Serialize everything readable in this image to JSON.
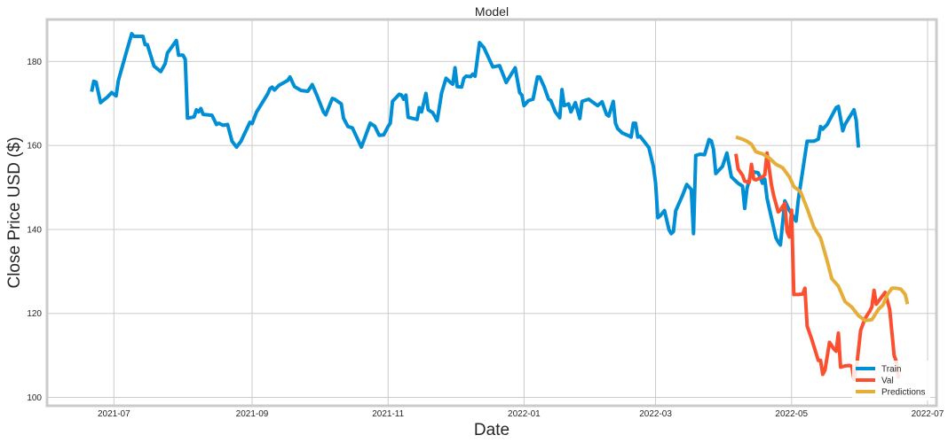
{
  "chart_data": {
    "type": "line",
    "title": "Model",
    "xlabel": "Date",
    "ylabel": "Close Price USD ($)",
    "xlim": [
      "2021-06-01",
      "2022-07-05"
    ],
    "ylim": [
      98,
      190
    ],
    "x_ticks": [
      "2021-07",
      "2021-09",
      "2021-11",
      "2022-01",
      "2022-03",
      "2022-05",
      "2022-07"
    ],
    "y_ticks": [
      100,
      120,
      140,
      160,
      180
    ],
    "grid": true,
    "legend_position": "lower right",
    "series": [
      {
        "name": "Train",
        "color": "#008fd5",
        "points": [
          [
            "2021-06-21",
            172.8
          ],
          [
            "2021-06-22",
            175.3
          ],
          [
            "2021-06-23",
            175.1
          ],
          [
            "2021-06-25",
            170.2
          ],
          [
            "2021-06-28",
            171.5
          ],
          [
            "2021-06-30",
            172.6
          ],
          [
            "2021-07-02",
            171.8
          ],
          [
            "2021-07-03",
            175.5
          ],
          [
            "2021-07-07",
            183.0
          ],
          [
            "2021-07-09",
            186.6
          ],
          [
            "2021-07-10",
            186.0
          ],
          [
            "2021-07-14",
            186.0
          ],
          [
            "2021-07-15",
            184.0
          ],
          [
            "2021-07-16",
            184.0
          ],
          [
            "2021-07-19",
            178.9
          ],
          [
            "2021-07-22",
            177.6
          ],
          [
            "2021-07-24",
            179.5
          ],
          [
            "2021-07-25",
            182.0
          ],
          [
            "2021-07-29",
            185.0
          ],
          [
            "2021-07-30",
            181.5
          ],
          [
            "2021-08-01",
            181.5
          ],
          [
            "2021-08-02",
            180.5
          ],
          [
            "2021-08-03",
            166.5
          ],
          [
            "2021-08-06",
            166.8
          ],
          [
            "2021-08-07",
            168.5
          ],
          [
            "2021-08-08",
            168.0
          ],
          [
            "2021-08-09",
            168.8
          ],
          [
            "2021-08-10",
            167.4
          ],
          [
            "2021-08-14",
            167.2
          ],
          [
            "2021-08-16",
            165.0
          ],
          [
            "2021-08-17",
            165.3
          ],
          [
            "2021-08-19",
            164.8
          ],
          [
            "2021-08-21",
            165.0
          ],
          [
            "2021-08-23",
            161.0
          ],
          [
            "2021-08-25",
            159.6
          ],
          [
            "2021-08-27",
            161.0
          ],
          [
            "2021-08-31",
            165.5
          ],
          [
            "2021-09-01",
            165.2
          ],
          [
            "2021-09-03",
            168.0
          ],
          [
            "2021-09-08",
            172.3
          ],
          [
            "2021-09-09",
            173.5
          ],
          [
            "2021-09-10",
            173.9
          ],
          [
            "2021-09-11",
            173.2
          ],
          [
            "2021-09-13",
            174.3
          ],
          [
            "2021-09-17",
            175.5
          ],
          [
            "2021-09-18",
            176.3
          ],
          [
            "2021-09-20",
            174.0
          ],
          [
            "2021-09-23",
            173.1
          ],
          [
            "2021-09-26",
            172.9
          ],
          [
            "2021-09-28",
            174.5
          ],
          [
            "2021-09-30",
            172.0
          ],
          [
            "2021-10-03",
            168.0
          ],
          [
            "2021-10-04",
            167.3
          ],
          [
            "2021-10-07",
            171.2
          ],
          [
            "2021-10-08",
            171.0
          ],
          [
            "2021-10-11",
            169.9
          ],
          [
            "2021-10-12",
            166.5
          ],
          [
            "2021-10-14",
            164.5
          ],
          [
            "2021-10-16",
            164.2
          ],
          [
            "2021-10-20",
            159.6
          ],
          [
            "2021-10-24",
            165.3
          ],
          [
            "2021-10-26",
            164.6
          ],
          [
            "2021-10-28",
            162.4
          ],
          [
            "2021-10-30",
            162.5
          ],
          [
            "2021-11-01",
            164.5
          ],
          [
            "2021-11-02",
            165.3
          ],
          [
            "2021-11-03",
            170.5
          ],
          [
            "2021-11-06",
            172.2
          ],
          [
            "2021-11-07",
            172.0
          ],
          [
            "2021-11-08",
            171.0
          ],
          [
            "2021-11-09",
            172.0
          ],
          [
            "2021-11-10",
            166.7
          ],
          [
            "2021-11-14",
            166.2
          ],
          [
            "2021-11-15",
            169.0
          ],
          [
            "2021-11-16",
            168.0
          ],
          [
            "2021-11-18",
            172.4
          ],
          [
            "2021-11-19",
            168.5
          ],
          [
            "2021-11-21",
            167.8
          ],
          [
            "2021-11-23",
            165.9
          ],
          [
            "2021-11-25",
            172.5
          ],
          [
            "2021-11-27",
            176.0
          ],
          [
            "2021-11-29",
            175.0
          ],
          [
            "2021-11-30",
            174.6
          ],
          [
            "2021-12-01",
            178.5
          ],
          [
            "2021-12-02",
            174.0
          ],
          [
            "2021-12-04",
            173.9
          ],
          [
            "2021-12-05",
            176.0
          ],
          [
            "2021-12-06",
            176.5
          ],
          [
            "2021-12-08",
            176.4
          ],
          [
            "2021-12-09",
            177.0
          ],
          [
            "2021-12-10",
            176.5
          ],
          [
            "2021-12-12",
            184.5
          ],
          [
            "2021-12-14",
            183.3
          ],
          [
            "2021-12-16",
            181.0
          ],
          [
            "2021-12-18",
            178.7
          ],
          [
            "2021-12-21",
            179.0
          ],
          [
            "2021-12-24",
            175.0
          ],
          [
            "2021-12-28",
            178.5
          ],
          [
            "2021-12-30",
            172.6
          ],
          [
            "2021-12-31",
            172.0
          ],
          [
            "2022-01-01",
            169.5
          ],
          [
            "2022-01-03",
            170.7
          ],
          [
            "2022-01-05",
            171.0
          ],
          [
            "2022-01-07",
            176.3
          ],
          [
            "2022-01-08",
            176.3
          ],
          [
            "2022-01-10",
            174.0
          ],
          [
            "2022-01-12",
            171.0
          ],
          [
            "2022-01-13",
            170.7
          ],
          [
            "2022-01-15",
            168.0
          ],
          [
            "2022-01-17",
            166.6
          ],
          [
            "2022-01-18",
            173.3
          ],
          [
            "2022-01-19",
            169.5
          ],
          [
            "2022-01-21",
            169.9
          ],
          [
            "2022-01-22",
            168.0
          ],
          [
            "2022-01-24",
            170.2
          ],
          [
            "2022-01-26",
            166.4
          ],
          [
            "2022-01-27",
            170.5
          ],
          [
            "2022-01-30",
            171.0
          ],
          [
            "2022-02-03",
            169.5
          ],
          [
            "2022-02-05",
            170.4
          ],
          [
            "2022-02-07",
            167.4
          ],
          [
            "2022-02-08",
            167.0
          ],
          [
            "2022-02-10",
            170.5
          ],
          [
            "2022-02-11",
            165.3
          ],
          [
            "2022-02-12",
            164.0
          ],
          [
            "2022-02-14",
            163.0
          ],
          [
            "2022-02-17",
            162.3
          ],
          [
            "2022-02-18",
            162.0
          ],
          [
            "2022-02-19",
            165.3
          ],
          [
            "2022-02-20",
            165.3
          ],
          [
            "2022-02-21",
            162.0
          ],
          [
            "2022-02-22",
            162.2
          ],
          [
            "2022-02-26",
            159.5
          ],
          [
            "2022-02-28",
            155.0
          ],
          [
            "2022-03-01",
            151.0
          ],
          [
            "2022-03-02",
            142.8
          ],
          [
            "2022-03-03",
            143.2
          ],
          [
            "2022-03-05",
            144.5
          ],
          [
            "2022-03-07",
            140.0
          ],
          [
            "2022-03-08",
            139.0
          ],
          [
            "2022-03-09",
            139.5
          ],
          [
            "2022-03-10",
            144.4
          ],
          [
            "2022-03-13",
            148.0
          ],
          [
            "2022-03-15",
            150.7
          ],
          [
            "2022-03-17",
            149.5
          ],
          [
            "2022-03-18",
            139.0
          ],
          [
            "2022-03-19",
            157.6
          ],
          [
            "2022-03-21",
            157.9
          ],
          [
            "2022-03-23",
            157.8
          ],
          [
            "2022-03-25",
            161.4
          ],
          [
            "2022-03-26",
            161.1
          ],
          [
            "2022-03-27",
            159.0
          ],
          [
            "2022-03-28",
            153.3
          ],
          [
            "2022-03-31",
            155.0
          ],
          [
            "2022-04-02",
            158.2
          ],
          [
            "2022-04-04",
            152.5
          ],
          [
            "2022-04-07",
            151.0
          ],
          [
            "2022-04-09",
            150.3
          ],
          [
            "2022-04-10",
            145.0
          ],
          [
            "2022-04-11",
            149.7
          ],
          [
            "2022-04-13",
            153.8
          ],
          [
            "2022-04-16",
            153.5
          ],
          [
            "2022-04-18",
            151.0
          ],
          [
            "2022-04-19",
            152.0
          ],
          [
            "2022-04-20",
            147.5
          ],
          [
            "2022-04-21",
            145.0
          ],
          [
            "2022-04-24",
            138.0
          ],
          [
            "2022-04-25",
            137.0
          ],
          [
            "2022-04-26",
            136.3
          ],
          [
            "2022-04-28",
            146.8
          ],
          [
            "2022-04-30",
            144.5
          ],
          [
            "2022-05-03",
            142.0
          ],
          [
            "2022-05-04",
            147.0
          ],
          [
            "2022-05-06",
            154.0
          ],
          [
            "2022-05-08",
            161.0
          ],
          [
            "2022-05-11",
            161.0
          ],
          [
            "2022-05-13",
            161.5
          ],
          [
            "2022-05-14",
            164.5
          ],
          [
            "2022-05-15",
            163.9
          ],
          [
            "2022-05-17",
            165.0
          ],
          [
            "2022-05-21",
            169.0
          ],
          [
            "2022-05-22",
            169.3
          ],
          [
            "2022-05-24",
            163.5
          ],
          [
            "2022-05-25",
            165.0
          ],
          [
            "2022-05-29",
            168.5
          ],
          [
            "2022-05-30",
            166.0
          ],
          [
            "2022-05-31",
            159.5
          ]
        ]
      },
      {
        "name": "Val",
        "color": "#fc4f30",
        "points": [
          [
            "2022-04-06",
            158.0
          ],
          [
            "2022-04-07",
            154.4
          ],
          [
            "2022-04-09",
            152.9
          ],
          [
            "2022-04-10",
            151.5
          ],
          [
            "2022-04-12",
            151.2
          ],
          [
            "2022-04-13",
            155.5
          ],
          [
            "2022-04-14",
            152.0
          ],
          [
            "2022-04-15",
            151.8
          ],
          [
            "2022-04-18",
            152.5
          ],
          [
            "2022-04-19",
            153.0
          ],
          [
            "2022-04-20",
            158.2
          ],
          [
            "2022-04-22",
            150.5
          ],
          [
            "2022-04-23",
            148.0
          ],
          [
            "2022-04-25",
            144.2
          ],
          [
            "2022-04-26",
            144.6
          ],
          [
            "2022-04-27",
            145.5
          ],
          [
            "2022-04-28",
            146.2
          ],
          [
            "2022-04-29",
            139.5
          ],
          [
            "2022-04-30",
            138.2
          ],
          [
            "2022-05-01",
            144.6
          ],
          [
            "2022-05-02",
            124.5
          ],
          [
            "2022-05-04",
            124.5
          ],
          [
            "2022-05-06",
            124.6
          ],
          [
            "2022-05-07",
            126.0
          ],
          [
            "2022-05-08",
            117.0
          ],
          [
            "2022-05-10",
            113.9
          ],
          [
            "2022-05-12",
            110.5
          ],
          [
            "2022-05-13",
            108.8
          ],
          [
            "2022-05-14",
            108.8
          ],
          [
            "2022-05-15",
            105.5
          ],
          [
            "2022-05-16",
            106.5
          ],
          [
            "2022-05-18",
            113.1
          ],
          [
            "2022-05-20",
            111.5
          ],
          [
            "2022-05-21",
            111.0
          ],
          [
            "2022-05-22",
            115.3
          ],
          [
            "2022-05-23",
            107.2
          ],
          [
            "2022-05-25",
            107.5
          ],
          [
            "2022-05-27",
            107.6
          ],
          [
            "2022-05-28",
            107.4
          ],
          [
            "2022-05-29",
            104.3
          ],
          [
            "2022-05-30",
            106.5
          ],
          [
            "2022-06-01",
            116.0
          ],
          [
            "2022-06-03",
            118.8
          ],
          [
            "2022-06-05",
            120.5
          ],
          [
            "2022-06-06",
            121.5
          ],
          [
            "2022-06-07",
            125.5
          ],
          [
            "2022-06-08",
            122.2
          ],
          [
            "2022-06-10",
            123.6
          ],
          [
            "2022-06-12",
            125.0
          ],
          [
            "2022-06-14",
            121.0
          ],
          [
            "2022-06-16",
            110.0
          ],
          [
            "2022-06-17",
            108.5
          ],
          [
            "2022-06-18",
            104.5
          ]
        ]
      },
      {
        "name": "Predictions",
        "color": "#e5ae38",
        "points": [
          [
            "2022-04-06",
            162.0
          ],
          [
            "2022-04-09",
            161.5
          ],
          [
            "2022-04-11",
            161.0
          ],
          [
            "2022-04-13",
            160.3
          ],
          [
            "2022-04-15",
            158.5
          ],
          [
            "2022-04-18",
            158.0
          ],
          [
            "2022-04-21",
            157.0
          ],
          [
            "2022-04-24",
            155.5
          ],
          [
            "2022-04-27",
            154.7
          ],
          [
            "2022-04-30",
            152.5
          ],
          [
            "2022-05-02",
            150.2
          ],
          [
            "2022-05-05",
            149.0
          ],
          [
            "2022-05-08",
            145.0
          ],
          [
            "2022-05-11",
            140.5
          ],
          [
            "2022-05-14",
            138.0
          ],
          [
            "2022-05-17",
            132.5
          ],
          [
            "2022-05-19",
            128.3
          ],
          [
            "2022-05-22",
            126.5
          ],
          [
            "2022-05-25",
            122.8
          ],
          [
            "2022-05-28",
            121.5
          ],
          [
            "2022-05-31",
            119.5
          ],
          [
            "2022-06-03",
            118.3
          ],
          [
            "2022-06-06",
            118.5
          ],
          [
            "2022-06-09",
            121.0
          ],
          [
            "2022-06-11",
            122.0
          ],
          [
            "2022-06-13",
            124.5
          ],
          [
            "2022-06-15",
            126.0
          ],
          [
            "2022-06-17",
            126.0
          ],
          [
            "2022-06-19",
            125.8
          ],
          [
            "2022-06-21",
            124.5
          ],
          [
            "2022-06-22",
            122.2
          ]
        ]
      }
    ]
  }
}
